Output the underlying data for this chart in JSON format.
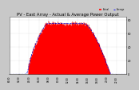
{
  "title": "PV - East Array - Actual & Average Power Output",
  "title_fontsize": 3.8,
  "bg_color": "#c8c8c8",
  "plot_bg_color": "#ffffff",
  "grid_color": "#d0d0d0",
  "fill_color": "#ff0000",
  "line_color": "#dd0000",
  "avg_line_color": "#0000cc",
  "y_max": 80,
  "y_min": 0,
  "x_min": 0,
  "x_max": 287,
  "legend_color1": "#ff2222",
  "legend_color2": "#2222ff",
  "legend_color3": "#ff00ff",
  "peak_hour": 110,
  "rise_start": 45,
  "fall_end": 245,
  "plateau_level": 75
}
